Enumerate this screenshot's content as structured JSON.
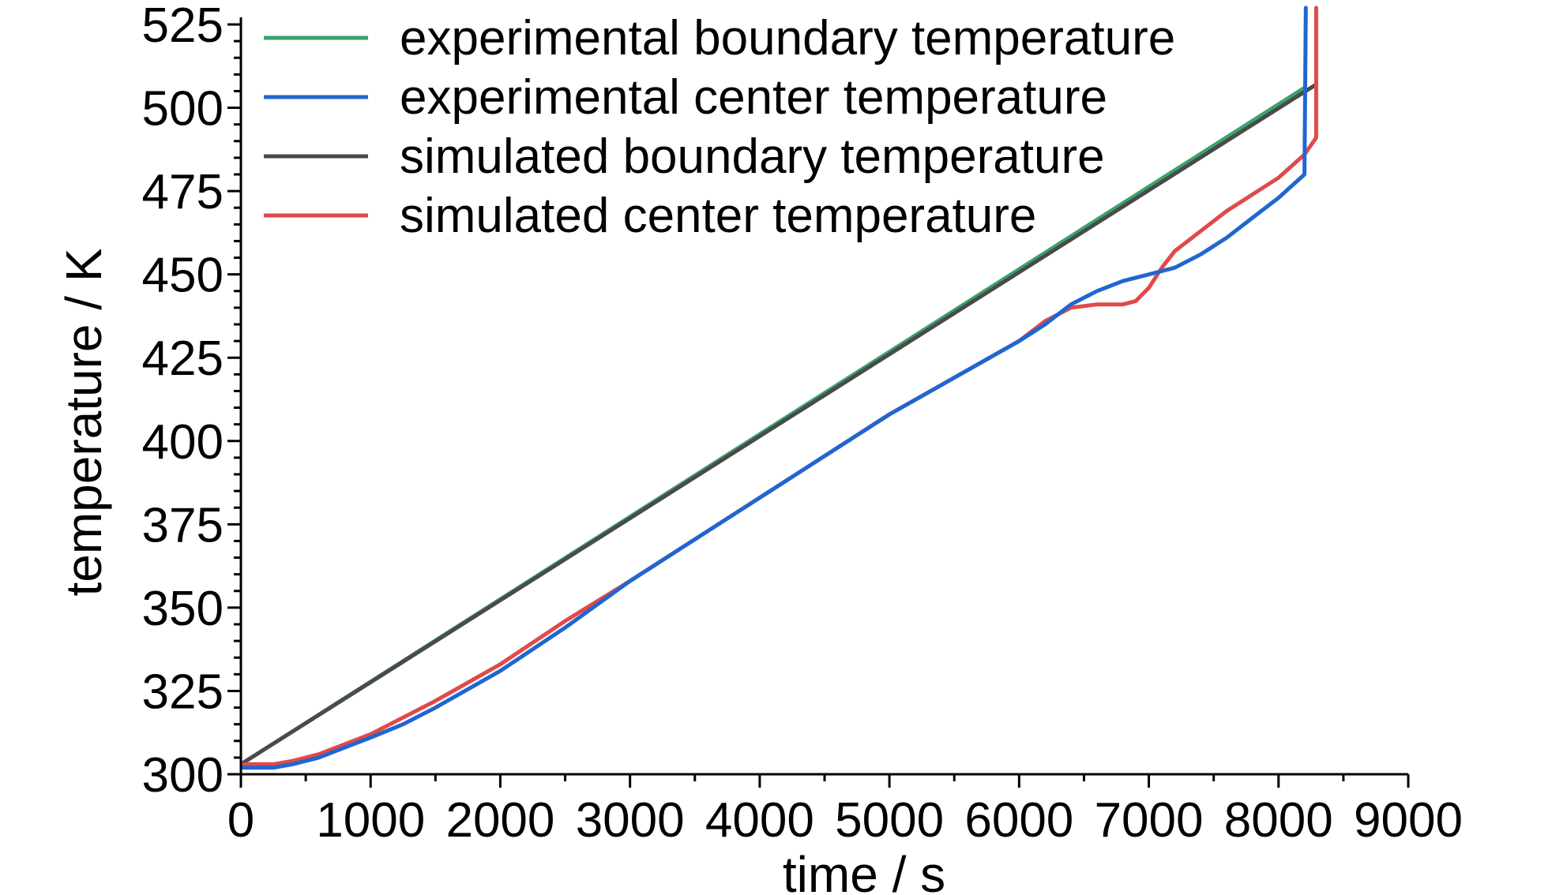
{
  "chart_data": {
    "type": "line",
    "xlabel": "time / s",
    "ylabel": "temperature / K",
    "xlim": [
      0,
      9000
    ],
    "ylim": [
      300,
      525
    ],
    "xticks": [
      0,
      1000,
      2000,
      3000,
      4000,
      5000,
      6000,
      7000,
      8000,
      9000
    ],
    "yticks": [
      300,
      325,
      350,
      375,
      400,
      425,
      450,
      475,
      500,
      525
    ],
    "x_minor_step": 500,
    "y_minor_step": 5,
    "grid": false,
    "legend_position": "top-left",
    "series": [
      {
        "name": "experimental boundary temperature",
        "color": "#3aa36b",
        "points": [
          [
            0,
            303
          ],
          [
            8200,
            506
          ]
        ]
      },
      {
        "name": "experimental center temperature",
        "color": "#2166d0",
        "points": [
          [
            0,
            302
          ],
          [
            100,
            302
          ],
          [
            250,
            302
          ],
          [
            400,
            303
          ],
          [
            600,
            305
          ],
          [
            800,
            308
          ],
          [
            1000,
            311
          ],
          [
            1250,
            315
          ],
          [
            1500,
            320
          ],
          [
            2000,
            331
          ],
          [
            2500,
            344
          ],
          [
            3000,
            358
          ],
          [
            4000,
            383
          ],
          [
            5000,
            408
          ],
          [
            6000,
            430
          ],
          [
            6200,
            435
          ],
          [
            6400,
            441
          ],
          [
            6600,
            445
          ],
          [
            6800,
            448
          ],
          [
            7000,
            450
          ],
          [
            7200,
            452
          ],
          [
            7400,
            456
          ],
          [
            7600,
            461
          ],
          [
            7800,
            467
          ],
          [
            8000,
            473
          ],
          [
            8200,
            480
          ],
          [
            8210,
            530
          ]
        ]
      },
      {
        "name": "simulated boundary temperature",
        "color": "#4a4a4a",
        "points": [
          [
            0,
            303
          ],
          [
            8290,
            507
          ]
        ]
      },
      {
        "name": "simulated center temperature",
        "color": "#e04a4a",
        "points": [
          [
            0,
            303
          ],
          [
            100,
            303
          ],
          [
            250,
            303
          ],
          [
            400,
            304
          ],
          [
            600,
            306
          ],
          [
            800,
            309
          ],
          [
            1000,
            312
          ],
          [
            1250,
            317
          ],
          [
            1500,
            322
          ],
          [
            2000,
            333
          ],
          [
            2500,
            346
          ],
          [
            3000,
            358
          ],
          [
            4000,
            383
          ],
          [
            5000,
            408
          ],
          [
            6000,
            430
          ],
          [
            6200,
            436
          ],
          [
            6400,
            440
          ],
          [
            6600,
            441
          ],
          [
            6800,
            441
          ],
          [
            6900,
            442
          ],
          [
            7000,
            446
          ],
          [
            7100,
            452
          ],
          [
            7200,
            457
          ],
          [
            7400,
            463
          ],
          [
            7600,
            469
          ],
          [
            7800,
            474
          ],
          [
            8000,
            479
          ],
          [
            8200,
            486
          ],
          [
            8290,
            491
          ],
          [
            8290,
            530
          ]
        ]
      }
    ]
  }
}
